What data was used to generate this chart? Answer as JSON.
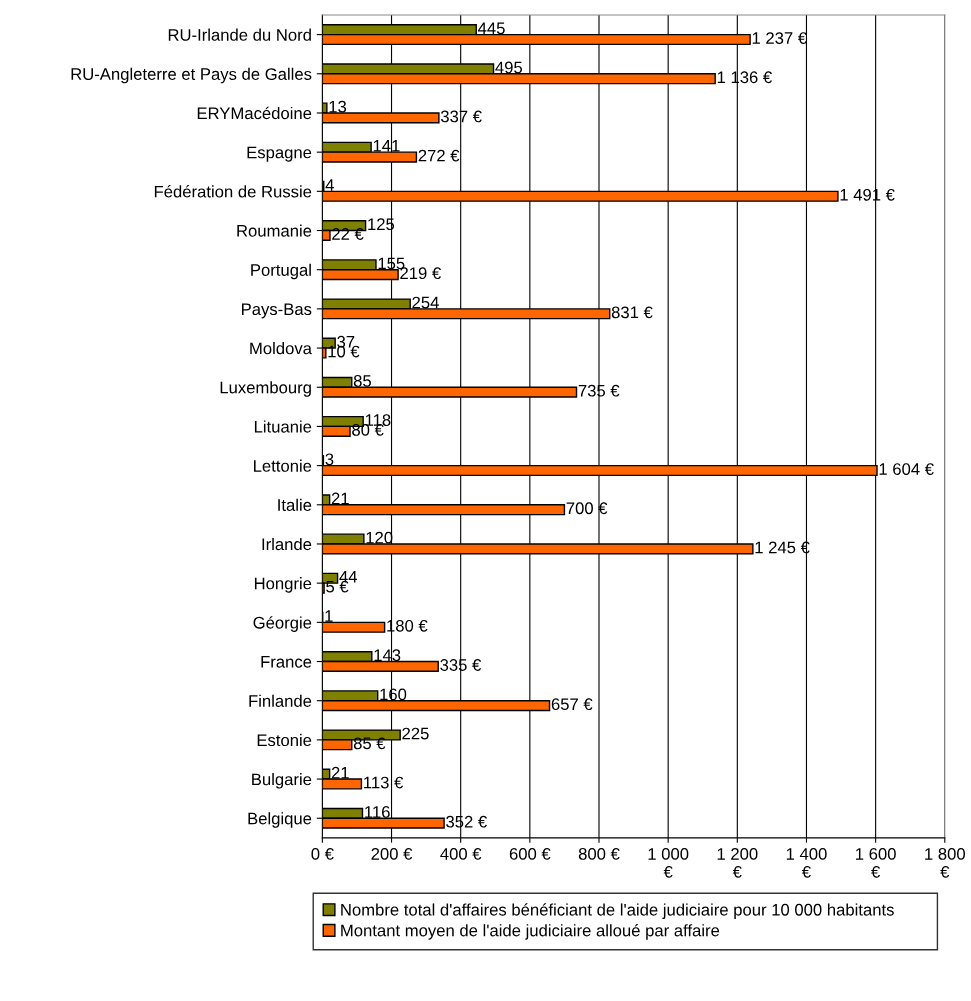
{
  "chart_data": {
    "type": "bar",
    "orientation": "horizontal",
    "categories": [
      "RU-Irlande du Nord",
      "RU-Angleterre et Pays de Galles",
      "ERYMacédoine",
      "Espagne",
      "Fédération de Russie",
      "Roumanie",
      "Portugal",
      "Pays-Bas",
      "Moldova",
      "Luxembourg",
      "Lituanie",
      "Lettonie",
      "Italie",
      "Irlande",
      "Hongrie",
      "Géorgie",
      "France",
      "Finlande",
      "Estonie",
      "Bulgarie",
      "Belgique"
    ],
    "series": [
      {
        "name": "Nombre total d'affaires bénéficiant de l'aide judiciaire pour 10 000 habitants",
        "color": "#808000",
        "values": [
          445,
          495,
          13,
          141,
          4,
          125,
          155,
          254,
          37,
          85,
          118,
          3,
          21,
          120,
          44,
          1,
          143,
          160,
          225,
          21,
          116
        ],
        "value_labels": [
          "445",
          "495",
          "13",
          "141",
          "4",
          "125",
          "155",
          "254",
          "37",
          "85",
          "118",
          "3",
          "21",
          "120",
          "44",
          "1",
          "143",
          "160",
          "225",
          "21",
          "116"
        ]
      },
      {
        "name": "Montant moyen de l'aide judiciaire alloué par affaire",
        "color": "#ff6600",
        "values": [
          1237,
          1136,
          337,
          272,
          1491,
          22,
          219,
          831,
          10,
          735,
          80,
          1604,
          700,
          1245,
          5,
          180,
          335,
          657,
          85,
          113,
          352
        ],
        "value_labels": [
          "1 237 €",
          "1 136 €",
          "337 €",
          "272 €",
          "1 491 €",
          "22 €",
          "219 €",
          "831 €",
          "10 €",
          "735 €",
          "80 €",
          "1 604 €",
          "700 €",
          "1 245 €",
          "5 €",
          "180 €",
          "335 €",
          "657 €",
          "85 €",
          "113 €",
          "352 €"
        ]
      }
    ],
    "xlim": [
      0,
      1800
    ],
    "xticks": [
      {
        "value": 0,
        "label": "0 €"
      },
      {
        "value": 200,
        "label": "200 €"
      },
      {
        "value": 400,
        "label": "400 €"
      },
      {
        "value": 600,
        "label": "600 €"
      },
      {
        "value": 800,
        "label": "800 €"
      },
      {
        "value": 1000,
        "label": "1 000\n€"
      },
      {
        "value": 1200,
        "label": "1 200\n€"
      },
      {
        "value": 1400,
        "label": "1 400\n€"
      },
      {
        "value": 1600,
        "label": "1 600\n€"
      },
      {
        "value": 1800,
        "label": "1 800\n€"
      }
    ],
    "grid": "x",
    "legend": "bottom"
  }
}
